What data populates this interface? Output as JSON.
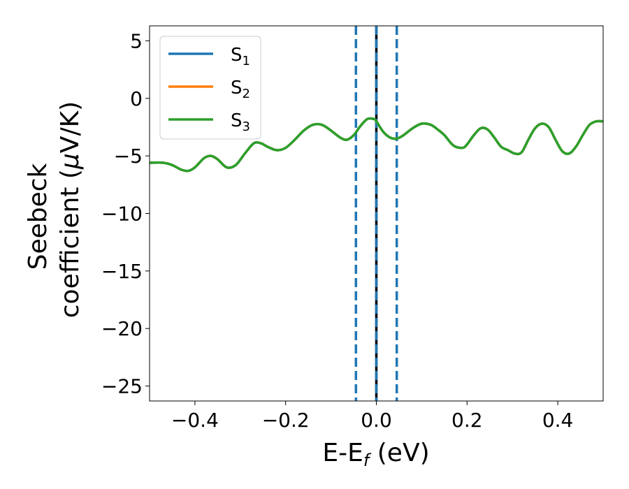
{
  "chart_data": {
    "type": "line",
    "xlabel": {
      "main": "E-E",
      "sub": "f",
      "tail": " (eV)"
    },
    "ylabel": {
      "line1": "Seebeck",
      "line2_pre": "coefficient  (",
      "line2_mu": "μ",
      "line2_post": "V/K)"
    },
    "xlim": [
      -0.5,
      0.5
    ],
    "ylim": [
      -26.3,
      6.3
    ],
    "x_ticks": [
      -0.4,
      -0.2,
      0.0,
      0.2,
      0.4
    ],
    "x_tick_labels": [
      "−0.4",
      "−0.2",
      "0.0",
      "0.2",
      "0.4"
    ],
    "y_ticks": [
      5,
      0,
      -5,
      -10,
      -15,
      -20,
      -25
    ],
    "y_tick_labels": [
      "5",
      "0",
      "−5",
      "−10",
      "−15",
      "−20",
      "−25"
    ],
    "grid": false,
    "legend_position": "top-left",
    "legend": [
      {
        "base": "S",
        "sub": "1",
        "color": "#1f77b4"
      },
      {
        "base": "S",
        "sub": "2",
        "color": "#ff7f0e"
      },
      {
        "base": "S",
        "sub": "3",
        "color": "#2ca02c"
      }
    ],
    "x": [
      -0.5,
      -0.47,
      -0.45,
      -0.43,
      -0.415,
      -0.4,
      -0.38,
      -0.365,
      -0.35,
      -0.33,
      -0.31,
      -0.29,
      -0.27,
      -0.255,
      -0.24,
      -0.22,
      -0.2,
      -0.18,
      -0.16,
      -0.14,
      -0.12,
      -0.1,
      -0.08,
      -0.065,
      -0.05,
      -0.035,
      -0.02,
      -0.005,
      0.0,
      0.015,
      0.03,
      0.045,
      0.06,
      0.08,
      0.1,
      0.12,
      0.135,
      0.15,
      0.17,
      0.19,
      0.2,
      0.215,
      0.23,
      0.245,
      0.26,
      0.275,
      0.29,
      0.305,
      0.32,
      0.335,
      0.35,
      0.365,
      0.38,
      0.395,
      0.41,
      0.425,
      0.44,
      0.455,
      0.47,
      0.485,
      0.5
    ],
    "series": [
      {
        "name": "S1",
        "color": "#1f77b4",
        "values": [
          -5.6,
          -5.6,
          -5.8,
          -6.2,
          -6.3,
          -6.0,
          -5.2,
          -5.0,
          -5.3,
          -6.0,
          -5.8,
          -4.8,
          -3.9,
          -3.9,
          -4.2,
          -4.5,
          -4.3,
          -3.6,
          -2.8,
          -2.3,
          -2.3,
          -2.8,
          -3.4,
          -3.6,
          -3.2,
          -2.4,
          -1.8,
          -1.8,
          -2.0,
          -2.9,
          -3.4,
          -3.5,
          -3.2,
          -2.6,
          -2.2,
          -2.3,
          -2.7,
          -3.2,
          -4.1,
          -4.3,
          -4.0,
          -3.2,
          -2.6,
          -2.7,
          -3.4,
          -4.2,
          -4.5,
          -4.8,
          -4.7,
          -3.6,
          -2.6,
          -2.2,
          -2.5,
          -3.6,
          -4.6,
          -4.8,
          -4.2,
          -3.2,
          -2.3,
          -2.0,
          -2.0
        ]
      },
      {
        "name": "S2",
        "color": "#ff7f0e",
        "values": [
          -5.6,
          -5.6,
          -5.8,
          -6.2,
          -6.3,
          -6.0,
          -5.2,
          -5.0,
          -5.3,
          -6.0,
          -5.8,
          -4.8,
          -3.9,
          -3.9,
          -4.2,
          -4.5,
          -4.3,
          -3.6,
          -2.8,
          -2.3,
          -2.3,
          -2.8,
          -3.4,
          -3.6,
          -3.2,
          -2.4,
          -1.8,
          -1.8,
          -2.0,
          -2.9,
          -3.4,
          -3.5,
          -3.2,
          -2.6,
          -2.2,
          -2.3,
          -2.7,
          -3.2,
          -4.1,
          -4.3,
          -4.0,
          -3.2,
          -2.6,
          -2.7,
          -3.4,
          -4.2,
          -4.5,
          -4.8,
          -4.7,
          -3.6,
          -2.6,
          -2.2,
          -2.5,
          -3.6,
          -4.6,
          -4.8,
          -4.2,
          -3.2,
          -2.3,
          -2.0,
          -2.0
        ]
      },
      {
        "name": "S3",
        "color": "#2ca02c",
        "values": [
          -5.6,
          -5.6,
          -5.8,
          -6.2,
          -6.3,
          -6.0,
          -5.2,
          -5.0,
          -5.3,
          -6.0,
          -5.8,
          -4.8,
          -3.9,
          -3.9,
          -4.2,
          -4.5,
          -4.3,
          -3.6,
          -2.8,
          -2.3,
          -2.3,
          -2.8,
          -3.4,
          -3.6,
          -3.2,
          -2.4,
          -1.8,
          -1.8,
          -2.0,
          -2.9,
          -3.4,
          -3.5,
          -3.2,
          -2.6,
          -2.2,
          -2.3,
          -2.7,
          -3.2,
          -4.1,
          -4.3,
          -4.0,
          -3.2,
          -2.6,
          -2.7,
          -3.4,
          -4.2,
          -4.5,
          -4.8,
          -4.7,
          -3.6,
          -2.6,
          -2.2,
          -2.5,
          -3.6,
          -4.6,
          -4.8,
          -4.2,
          -3.2,
          -2.3,
          -2.0,
          -2.0
        ]
      }
    ],
    "vertical_lines": [
      {
        "x": 0.0,
        "style": "solid",
        "color": "#000000"
      },
      {
        "x": -0.045,
        "style": "dashed",
        "color": "#1f77b4"
      },
      {
        "x": 0.0,
        "style": "dashed",
        "color": "#1f77b4"
      },
      {
        "x": 0.045,
        "style": "dashed",
        "color": "#1f77b4"
      }
    ]
  }
}
